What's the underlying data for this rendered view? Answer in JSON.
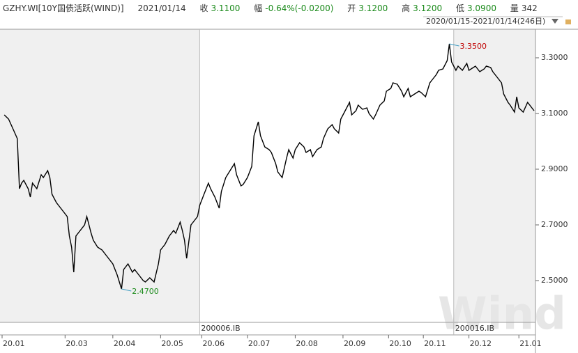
{
  "chart_data": {
    "type": "line",
    "header": {
      "symbol": "GZHY.WI[10Y国债活跃(WIND)]",
      "date": "2021/01/14",
      "close_label": "收",
      "close": "3.1100",
      "change_label": "幅",
      "change": "-0.64%(-0.0200)",
      "open_label": "开",
      "open": "3.1200",
      "high_label": "高",
      "high": "3.1200",
      "low_label": "低",
      "low": "3.0900",
      "volume_label": "量",
      "volume": "342"
    },
    "range_label": "2020/01/15-2021/01/14(246日)",
    "watermark": "Wind",
    "x": [
      1,
      3,
      5,
      7,
      8,
      9,
      10,
      12,
      13,
      14,
      16,
      18,
      19,
      21,
      22,
      23,
      25,
      27,
      30,
      31,
      32,
      33,
      34,
      36,
      38,
      39,
      41,
      42,
      44,
      46,
      48,
      50,
      51,
      53,
      55,
      56,
      58,
      60,
      61,
      63,
      65,
      66,
      68,
      70,
      72,
      73,
      75,
      77,
      79,
      80,
      82,
      83,
      84,
      85,
      87,
      88,
      90,
      91,
      93,
      95,
      96,
      98,
      100,
      101,
      103,
      105,
      107,
      108,
      110,
      111,
      113,
      115,
      116,
      118,
      119,
      121,
      123,
      124,
      126,
      127,
      129,
      131,
      132,
      134,
      135,
      137,
      139,
      140,
      142,
      143,
      145,
      147,
      148,
      150,
      152,
      153,
      155,
      156,
      158,
      160,
      161,
      163,
      164,
      166,
      168,
      169,
      171,
      172,
      174,
      176,
      177,
      179,
      180,
      182,
      184,
      185,
      187,
      188,
      190,
      192,
      193,
      195,
      197,
      198,
      200,
      201,
      203,
      205,
      206,
      207,
      209,
      210,
      212,
      214,
      215,
      217,
      218,
      220,
      222,
      223,
      225,
      226,
      228,
      230,
      231,
      233,
      234,
      236,
      237,
      238,
      240,
      242,
      244,
      245
    ],
    "values": [
      3.095,
      3.08,
      3.045,
      3.01,
      2.83,
      2.85,
      2.86,
      2.83,
      2.8,
      2.85,
      2.83,
      2.88,
      2.87,
      2.895,
      2.87,
      2.81,
      2.78,
      2.76,
      2.73,
      2.66,
      2.62,
      2.53,
      2.66,
      2.68,
      2.7,
      2.73,
      2.67,
      2.645,
      2.62,
      2.61,
      2.59,
      2.57,
      2.56,
      2.52,
      2.47,
      2.54,
      2.56,
      2.53,
      2.54,
      2.52,
      2.5,
      2.495,
      2.51,
      2.495,
      2.56,
      2.61,
      2.63,
      2.66,
      2.68,
      2.67,
      2.71,
      2.68,
      2.645,
      2.58,
      2.7,
      2.71,
      2.73,
      2.77,
      2.81,
      2.85,
      2.83,
      2.8,
      2.76,
      2.82,
      2.87,
      2.895,
      2.92,
      2.88,
      2.84,
      2.845,
      2.87,
      2.91,
      3.02,
      3.07,
      3.02,
      2.98,
      2.97,
      2.96,
      2.92,
      2.89,
      2.87,
      2.94,
      2.97,
      2.94,
      2.97,
      2.995,
      2.98,
      2.96,
      2.97,
      2.945,
      2.97,
      2.98,
      3.01,
      3.045,
      3.06,
      3.045,
      3.03,
      3.08,
      3.11,
      3.14,
      3.095,
      3.11,
      3.13,
      3.115,
      3.12,
      3.1,
      3.08,
      3.095,
      3.13,
      3.145,
      3.18,
      3.19,
      3.21,
      3.205,
      3.18,
      3.16,
      3.19,
      3.16,
      3.17,
      3.18,
      3.175,
      3.16,
      3.21,
      3.22,
      3.24,
      3.255,
      3.26,
      3.29,
      3.35,
      3.285,
      3.255,
      3.27,
      3.255,
      3.28,
      3.255,
      3.265,
      3.27,
      3.25,
      3.26,
      3.27,
      3.265,
      3.25,
      3.23,
      3.21,
      3.17,
      3.14,
      3.13,
      3.105,
      3.16,
      3.12,
      3.105,
      3.14,
      3.12,
      3.11
    ],
    "color": "#000000",
    "xlim": [
      0,
      245
    ],
    "xticks": [
      {
        "value": 0,
        "label": "20.01"
      },
      {
        "value": 29,
        "label": "20.03"
      },
      {
        "value": 51,
        "label": "20.04"
      },
      {
        "value": 73,
        "label": "20.05"
      },
      {
        "value": 92,
        "label": "20.06"
      },
      {
        "value": 113,
        "label": "20.07"
      },
      {
        "value": 135,
        "label": "20.08"
      },
      {
        "value": 157,
        "label": "20.09"
      },
      {
        "value": 178,
        "label": "20.10"
      },
      {
        "value": 194,
        "label": "20.11"
      },
      {
        "value": 215,
        "label": "20.12"
      },
      {
        "value": 238,
        "label": "21.01"
      }
    ],
    "ylim": [
      2.35,
      3.4025
    ],
    "yticks": [
      {
        "value": 2.5,
        "label": "2.5000"
      },
      {
        "value": 2.7,
        "label": "2.7000"
      },
      {
        "value": 2.9,
        "label": "2.9000"
      },
      {
        "value": 3.1,
        "label": "3.1000"
      },
      {
        "value": 3.3,
        "label": "3.3000"
      }
    ],
    "annotations": [
      {
        "x": 206,
        "value": 3.35,
        "label": "3.3500",
        "color": "#c00000",
        "side": "right"
      },
      {
        "x": 55,
        "value": 2.47,
        "label": "2.4700",
        "color": "#1a8a1a",
        "side": "right"
      }
    ],
    "contracts": [
      {
        "label": "200006.IB",
        "start": 91
      },
      {
        "label": "200016.IB",
        "start": 208
      }
    ]
  }
}
